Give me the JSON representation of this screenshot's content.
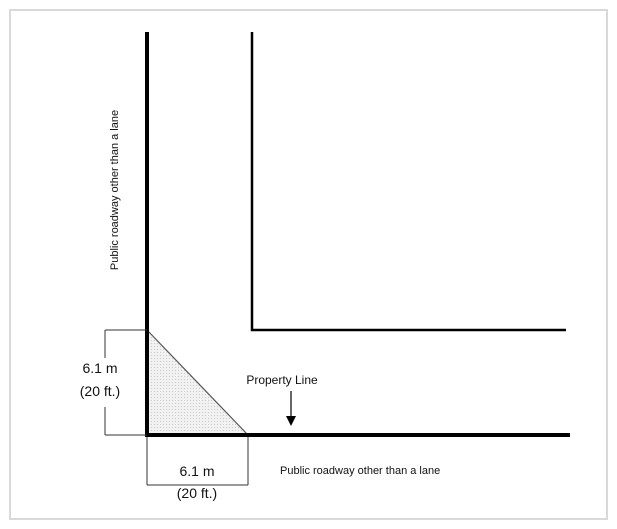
{
  "diagram": {
    "labels": {
      "road_vertical": "Public roadway other than a lane",
      "road_horizontal": "Public roadway other than a lane",
      "property_line": "Property Line",
      "dim_vertical_m": "6.1 m",
      "dim_vertical_ft": "(20 ft.)",
      "dim_horizontal_m": "6.1 m",
      "dim_horizontal_ft": "(20 ft.)"
    },
    "colors": {
      "frame": "#d9d9d9",
      "line": "#000000",
      "shading": "#e6e6e6"
    }
  }
}
